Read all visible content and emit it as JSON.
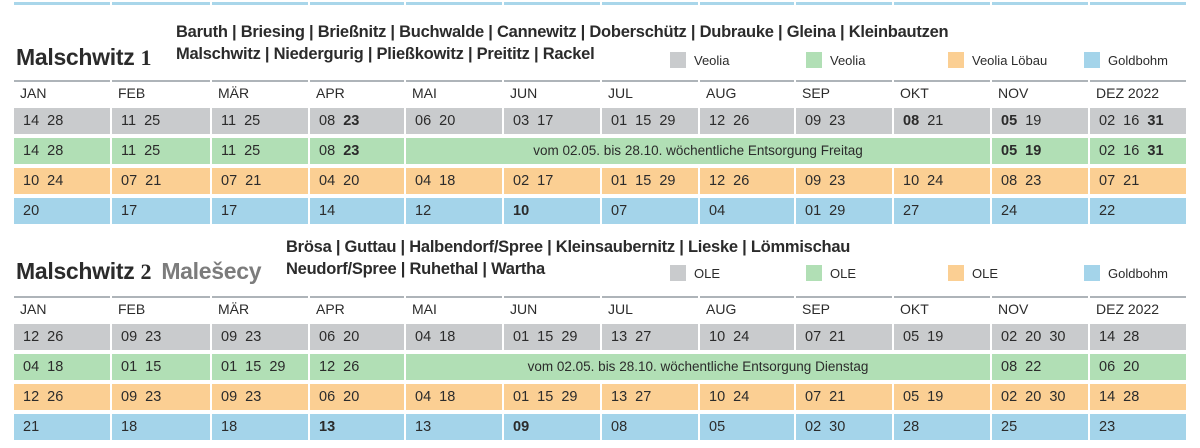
{
  "colors": {
    "grey": "#c9cbcd",
    "green": "#b1dfb5",
    "orange": "#fbcf93",
    "blue": "#a4d4ea"
  },
  "months": [
    "JAN",
    "FEB",
    "MÄR",
    "APR",
    "MAI",
    "JUN",
    "JUL",
    "AUG",
    "SEP",
    "OKT",
    "NOV",
    "DEZ 2022"
  ],
  "sections": [
    {
      "title": "Malschwitz",
      "number": "1",
      "sorbian": "",
      "places_line1": "Baruth | Briesing | Brießnitz | Buchwalde | Cannewitz | Doberschütz | Dubrauke | Gleina | Kleinbautzen",
      "places_line2": "Malschwitz | Niedergurig | Pließkowitz | Preititz | Rackel",
      "legend": [
        {
          "label": "Veolia",
          "color": "grey",
          "icon": "grey-square-icon"
        },
        {
          "label": "Veolia",
          "color": "green",
          "icon": "green-square-icon"
        },
        {
          "label": "Veolia Löbau",
          "color": "orange",
          "icon": "orange-square-icon"
        },
        {
          "label": "Goldbohm",
          "color": "blue",
          "icon": "blue-square-icon"
        }
      ],
      "rows": [
        {
          "color": "grey",
          "cells": [
            [
              {
                "t": "14  28"
              }
            ],
            [
              {
                "t": "11  25"
              }
            ],
            [
              {
                "t": "11  25"
              }
            ],
            [
              {
                "t": "08  "
              },
              {
                "t": "23",
                "b": true
              }
            ],
            [
              {
                "t": "06  20"
              }
            ],
            [
              {
                "t": "03  17"
              }
            ],
            [
              {
                "t": "01  15  29"
              }
            ],
            [
              {
                "t": "12  26"
              }
            ],
            [
              {
                "t": "09  23"
              }
            ],
            [
              {
                "t": "08",
                "b": true
              },
              {
                "t": "  21"
              }
            ],
            [
              {
                "t": "05",
                "b": true
              },
              {
                "t": "  19"
              }
            ],
            [
              {
                "t": "02  16  "
              },
              {
                "t": "31",
                "b": true
              }
            ]
          ]
        },
        {
          "color": "green",
          "span_text": "vom 02.05. bis 28.10. wöchentliche Entsorgung Freitag",
          "cells": [
            [
              {
                "t": "14  28"
              }
            ],
            [
              {
                "t": "11  25"
              }
            ],
            [
              {
                "t": "11  25"
              }
            ],
            [
              {
                "t": "08  "
              },
              {
                "t": "23",
                "b": true
              }
            ],
            null,
            null,
            null,
            null,
            null,
            null,
            [
              {
                "t": "05  19",
                "b": true
              }
            ],
            [
              {
                "t": "02  16  "
              },
              {
                "t": "31",
                "b": true
              }
            ]
          ]
        },
        {
          "color": "orange",
          "cells": [
            [
              {
                "t": "10  24"
              }
            ],
            [
              {
                "t": "07  21"
              }
            ],
            [
              {
                "t": "07  21"
              }
            ],
            [
              {
                "t": "04  20"
              }
            ],
            [
              {
                "t": "04  18"
              }
            ],
            [
              {
                "t": "02  17"
              }
            ],
            [
              {
                "t": "01  15  29"
              }
            ],
            [
              {
                "t": "12  26"
              }
            ],
            [
              {
                "t": "09  23"
              }
            ],
            [
              {
                "t": "10  24"
              }
            ],
            [
              {
                "t": "08  23"
              }
            ],
            [
              {
                "t": "07  21"
              }
            ]
          ]
        },
        {
          "color": "blue",
          "cells": [
            [
              {
                "t": "20"
              }
            ],
            [
              {
                "t": "17"
              }
            ],
            [
              {
                "t": "17"
              }
            ],
            [
              {
                "t": "14"
              }
            ],
            [
              {
                "t": "12"
              }
            ],
            [
              {
                "t": "10",
                "b": true
              }
            ],
            [
              {
                "t": "07"
              }
            ],
            [
              {
                "t": "04"
              }
            ],
            [
              {
                "t": "01  29"
              }
            ],
            [
              {
                "t": "27"
              }
            ],
            [
              {
                "t": "24"
              }
            ],
            [
              {
                "t": "22"
              }
            ]
          ]
        }
      ]
    },
    {
      "title": "Malschwitz",
      "number": "2",
      "sorbian": "Malešecy",
      "places_line1": "Brösa | Guttau | Halbendorf/Spree | Kleinsaubernitz | Lieske | Lömmischau",
      "places_line2": "Neudorf/Spree | Ruhethal | Wartha",
      "legend": [
        {
          "label": "OLE",
          "color": "grey",
          "icon": "grey-square-icon"
        },
        {
          "label": "OLE",
          "color": "green",
          "icon": "green-square-icon"
        },
        {
          "label": "OLE",
          "color": "orange",
          "icon": "orange-square-icon"
        },
        {
          "label": "Goldbohm",
          "color": "blue",
          "icon": "blue-square-icon"
        }
      ],
      "rows": [
        {
          "color": "grey",
          "cells": [
            [
              {
                "t": "12  26"
              }
            ],
            [
              {
                "t": "09  23"
              }
            ],
            [
              {
                "t": "09  23"
              }
            ],
            [
              {
                "t": "06  20"
              }
            ],
            [
              {
                "t": "04  18"
              }
            ],
            [
              {
                "t": "01  15  29"
              }
            ],
            [
              {
                "t": "13  27"
              }
            ],
            [
              {
                "t": "10  24"
              }
            ],
            [
              {
                "t": "07  21"
              }
            ],
            [
              {
                "t": "05  19"
              }
            ],
            [
              {
                "t": "02  20  30"
              }
            ],
            [
              {
                "t": "14  28"
              }
            ]
          ]
        },
        {
          "color": "green",
          "span_text": "vom 02.05. bis 28.10. wöchentliche Entsorgung Dienstag",
          "cells": [
            [
              {
                "t": "04  18"
              }
            ],
            [
              {
                "t": "01  15"
              }
            ],
            [
              {
                "t": "01  15  29"
              }
            ],
            [
              {
                "t": "12  26"
              }
            ],
            null,
            null,
            null,
            null,
            null,
            null,
            [
              {
                "t": "08  22"
              }
            ],
            [
              {
                "t": "06  20"
              }
            ]
          ]
        },
        {
          "color": "orange",
          "cells": [
            [
              {
                "t": "12  26"
              }
            ],
            [
              {
                "t": "09  23"
              }
            ],
            [
              {
                "t": "09  23"
              }
            ],
            [
              {
                "t": "06  20"
              }
            ],
            [
              {
                "t": "04  18"
              }
            ],
            [
              {
                "t": "01  15  29"
              }
            ],
            [
              {
                "t": "13  27"
              }
            ],
            [
              {
                "t": "10  24"
              }
            ],
            [
              {
                "t": "07  21"
              }
            ],
            [
              {
                "t": "05  19"
              }
            ],
            [
              {
                "t": "02  20  30"
              }
            ],
            [
              {
                "t": "14  28"
              }
            ]
          ]
        },
        {
          "color": "blue",
          "cells": [
            [
              {
                "t": "21"
              }
            ],
            [
              {
                "t": "18"
              }
            ],
            [
              {
                "t": "18"
              }
            ],
            [
              {
                "t": "13",
                "b": true
              }
            ],
            [
              {
                "t": "13"
              }
            ],
            [
              {
                "t": "09",
                "b": true
              }
            ],
            [
              {
                "t": "08"
              }
            ],
            [
              {
                "t": "05"
              }
            ],
            [
              {
                "t": "02  30"
              }
            ],
            [
              {
                "t": "28"
              }
            ],
            [
              {
                "t": "25"
              }
            ],
            [
              {
                "t": "23"
              }
            ]
          ]
        }
      ]
    }
  ]
}
